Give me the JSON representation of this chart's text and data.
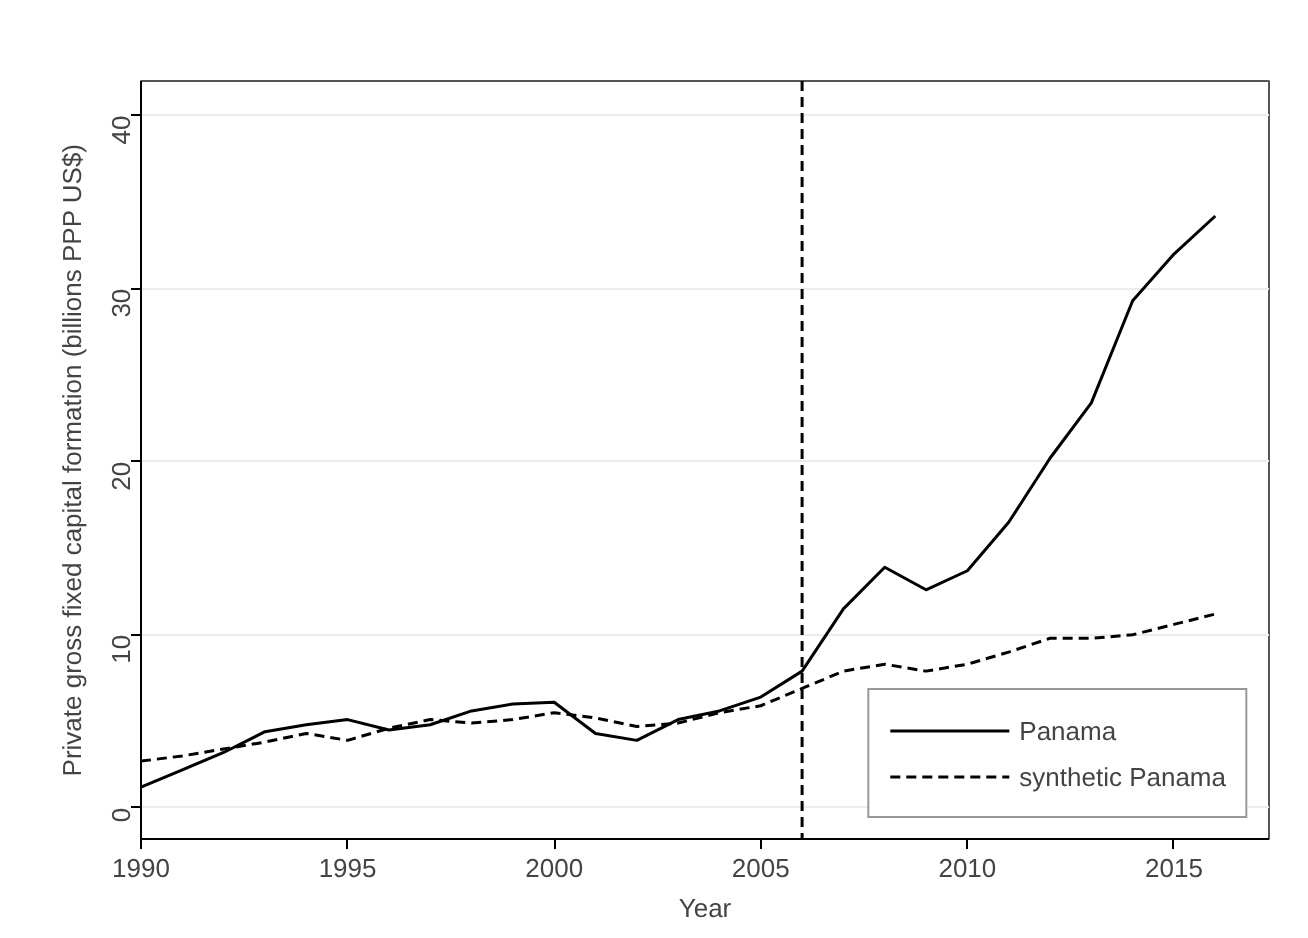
{
  "chart_data": {
    "type": "line",
    "xlabel": "Year",
    "ylabel": "Private gross fixed capital formation (billions PPP US$)",
    "x": [
      1990,
      1991,
      1992,
      1993,
      1994,
      1995,
      1996,
      1997,
      1998,
      1999,
      2000,
      2001,
      2002,
      2003,
      2004,
      2005,
      2006,
      2007,
      2008,
      2009,
      2010,
      2011,
      2012,
      2013,
      2014,
      2015,
      2016
    ],
    "series": [
      {
        "name": "Panama",
        "color": "#000000",
        "line_style": "solid",
        "values": [
          1.2,
          2.2,
          3.2,
          4.4,
          4.8,
          5.1,
          4.5,
          4.8,
          5.6,
          6.0,
          6.1,
          4.3,
          3.9,
          5.1,
          5.6,
          6.4,
          7.9,
          11.5,
          13.9,
          12.6,
          13.7,
          16.5,
          20.2,
          23.4,
          29.3,
          32.0,
          34.2
        ]
      },
      {
        "name": "synthetic Panama",
        "color": "#000000",
        "line_style": "dashed",
        "values": [
          2.7,
          3.0,
          3.4,
          3.8,
          4.3,
          3.9,
          4.6,
          5.1,
          4.9,
          5.1,
          5.5,
          5.2,
          4.7,
          4.9,
          5.5,
          5.9,
          6.9,
          7.9,
          8.3,
          7.9,
          8.3,
          9.0,
          9.8,
          9.8,
          10.0,
          10.6,
          11.2
        ]
      }
    ],
    "xlim": [
      1990,
      2017.3
    ],
    "ylim": [
      -1.8,
      42
    ],
    "xticks": [
      1990,
      1995,
      2000,
      2005,
      2010,
      2015
    ],
    "yticks": [
      0,
      10,
      20,
      30,
      40
    ],
    "grid": "y",
    "legend": "bottom right",
    "ref_lines": [
      {
        "axis": "x",
        "value": 2006,
        "color": "#000000",
        "line_style": "dashed"
      }
    ]
  }
}
